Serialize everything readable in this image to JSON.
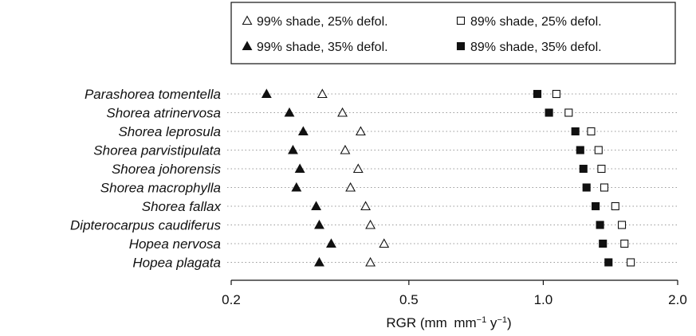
{
  "chart_data": {
    "type": "scatter",
    "title": "",
    "xlabel": "RGR (mm mm",
    "xlabel_sup1": "−1",
    "xlabel_mid": " y",
    "xlabel_sup2": "−1",
    "xlabel_end": ")",
    "ylabel": "",
    "x_scale": "log",
    "xlim": [
      0.2,
      2.0
    ],
    "x_ticks": [
      0.2,
      0.5,
      1.0,
      2.0
    ],
    "x_tick_labels": [
      "0.2",
      "0.5",
      "1.0",
      "2.0"
    ],
    "grid": "horizontal dotted",
    "legend_position": "top",
    "categories": [
      "Parashorea tomentella",
      "Shorea atrinervosa",
      "Shorea leprosula",
      "Shorea parvistipulata",
      "Shorea johorensis",
      "Shorea macrophylla",
      "Shorea fallax",
      "Dipterocarpus caudiferus",
      "Hopea nervosa",
      "Hopea plagata"
    ],
    "series": [
      {
        "name": "99% shade, 25% defol.",
        "marker": "open-triangle",
        "values": [
          0.32,
          0.355,
          0.39,
          0.36,
          0.385,
          0.37,
          0.4,
          0.41,
          0.44,
          0.41
        ]
      },
      {
        "name": "89% shade, 25% defol.",
        "marker": "open-square",
        "values": [
          1.07,
          1.14,
          1.28,
          1.33,
          1.35,
          1.37,
          1.45,
          1.5,
          1.52,
          1.57
        ]
      },
      {
        "name": "99% shade, 35% defol.",
        "marker": "filled-triangle",
        "values": [
          0.24,
          0.27,
          0.29,
          0.275,
          0.285,
          0.28,
          0.31,
          0.315,
          0.335,
          0.315
        ]
      },
      {
        "name": "89% shade, 35% defol.",
        "marker": "filled-square",
        "values": [
          0.97,
          1.03,
          1.18,
          1.21,
          1.23,
          1.25,
          1.31,
          1.34,
          1.36,
          1.4
        ]
      }
    ],
    "colors": {
      "marker": "#111111",
      "grid": "#9a9a9a",
      "background": "#ffffff"
    }
  }
}
